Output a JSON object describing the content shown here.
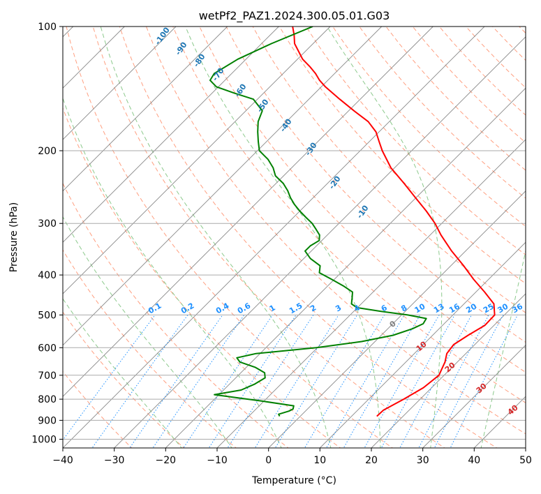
{
  "chart_data": {
    "type": "line",
    "title": "wetPf2_PAZ1.2024.300.05.01.G03",
    "xlabel": "Temperature (°C)",
    "ylabel": "Pressure (hPa)",
    "xlim": [
      -40,
      50
    ],
    "ylim": [
      1050,
      100
    ],
    "y_scale": "log",
    "skew": true,
    "grid": true,
    "x_ticks": [
      "−40",
      "−30",
      "−20",
      "−10",
      "0",
      "10",
      "20",
      "30",
      "40",
      "50"
    ],
    "y_ticks": [
      "100",
      "200",
      "300",
      "400",
      "500",
      "600",
      "700",
      "800",
      "900",
      "1000"
    ],
    "series": [
      {
        "color": "#ff0000",
        "p": [
          880,
          850,
          800,
          750,
          700,
          650,
          620,
          590,
          560,
          530,
          500,
          470,
          440,
          410,
          380,
          350,
          320,
          300,
          280,
          260,
          240,
          220,
          200,
          190,
          180,
          170,
          160,
          150,
          140,
          135,
          130,
          125,
          120,
          110,
          105,
          100
        ],
        "t": [
          14.9,
          15.0,
          16.8,
          18.4,
          19.0,
          17.6,
          16.3,
          15.9,
          16.9,
          18.2,
          18.1,
          15.8,
          11.7,
          7.1,
          2.5,
          -2.7,
          -7.9,
          -11.3,
          -15.4,
          -20.1,
          -25.1,
          -30.7,
          -35.7,
          -38.1,
          -40.6,
          -44.1,
          -49.0,
          -54.0,
          -59.2,
          -61.6,
          -63.7,
          -66.2,
          -69.0,
          -73.6,
          -75.3,
          -77.3
        ]
      },
      {
        "color": "#008000",
        "p": [
          880,
          870,
          855,
          845,
          830,
          810,
          790,
          780,
          760,
          735,
          710,
          690,
          670,
          650,
          635,
          620,
          600,
          580,
          560,
          540,
          525,
          510,
          500,
          490,
          480,
          470,
          455,
          440,
          425,
          410,
          395,
          380,
          365,
          350,
          340,
          330,
          320,
          310,
          300,
          290,
          280,
          270,
          260,
          250,
          240,
          230,
          220,
          210,
          200,
          190,
          180,
          170,
          160,
          150,
          145,
          140,
          135,
          130,
          120,
          110,
          100
        ],
        "t": [
          -4.0,
          -4.6,
          -3.2,
          -2.8,
          -3.3,
          -9.9,
          -17.2,
          -20.9,
          -16.6,
          -15.1,
          -14.3,
          -15.4,
          -18.2,
          -22.3,
          -23.7,
          -20.8,
          -10.2,
          -2.6,
          2.3,
          4.8,
          5.9,
          5.5,
          1.2,
          -4.7,
          -10.1,
          -11.9,
          -12.9,
          -14.0,
          -17.0,
          -20.5,
          -24.2,
          -25.4,
          -28.7,
          -31.2,
          -31.2,
          -30.5,
          -31.5,
          -33.3,
          -35.2,
          -37.6,
          -40.0,
          -42.3,
          -44.4,
          -46.3,
          -48.6,
          -51.6,
          -53.6,
          -56.2,
          -59.6,
          -61.6,
          -63.6,
          -65.5,
          -66.8,
          -70.8,
          -75.7,
          -80.4,
          -82.9,
          -83.4,
          -81.6,
          -78.1,
          -73.4
        ]
      }
    ],
    "background_lines": {
      "dry_adiabats_c": [
        -30,
        -20,
        -10,
        0,
        10,
        20,
        30,
        40,
        50,
        60,
        70,
        80,
        90,
        100,
        110,
        120,
        130,
        140,
        150,
        160,
        170,
        180,
        190,
        200,
        210
      ],
      "moist_adiabats_c": [
        -20,
        -10,
        0,
        10,
        20,
        30,
        40
      ],
      "mixing_ratio_g_per_kg": [
        "0.1",
        "0.2",
        "0.4",
        "0.6",
        "1",
        "1.5",
        "2",
        "3",
        "4",
        "6",
        "8",
        "10",
        "13",
        "16",
        "20",
        "25",
        "30",
        "36"
      ],
      "dry_adiabat_labels": [
        "-100",
        "-90",
        "-80",
        "-70",
        "-60",
        "-50",
        "-40",
        "-30",
        "-20",
        "-10"
      ],
      "moist_adiabat_labels": [
        "0",
        "10",
        "20",
        "30",
        "40"
      ]
    },
    "colors": {
      "temperature": "#ff0000",
      "dewpoint": "#008000",
      "mixing_ratio": "#1e90ff",
      "dry_adiabat_label": "#1f77b4",
      "moist_adiabat_label": "#d62728",
      "moist_label_zero": "#808080",
      "dry_adiabat": "#ff9f80",
      "moist_adiabat": "#8cc98c",
      "isotherm": "#888888",
      "isobar": "#aaaaaa"
    }
  }
}
